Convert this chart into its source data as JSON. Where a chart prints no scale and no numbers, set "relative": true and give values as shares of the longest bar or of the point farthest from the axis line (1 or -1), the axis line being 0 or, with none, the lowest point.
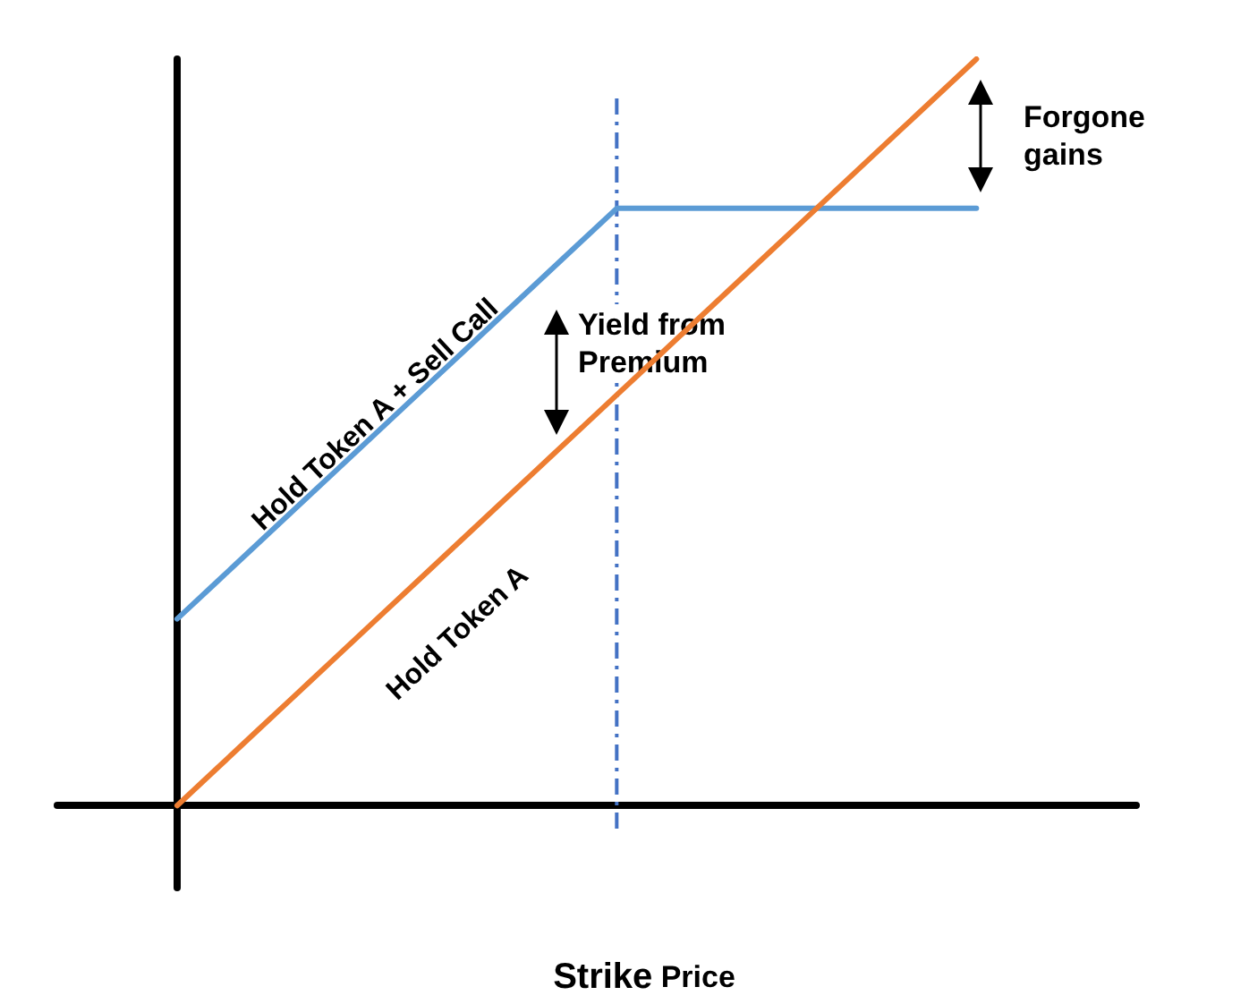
{
  "chart_data": {
    "type": "line",
    "relative": true,
    "xlabel": "Strike Price",
    "grid": false,
    "marker": "none",
    "categories": [
      null,
      null,
      null,
      null,
      null,
      null,
      null,
      null,
      null,
      null,
      null,
      null,
      null,
      null,
      null,
      null,
      null,
      null,
      null,
      null,
      null,
      null,
      null,
      null,
      null,
      null,
      null,
      null
    ],
    "series": [
      {
        "name": "Hold Token A + Sell Call",
        "color": "#5b9bd5",
        "values": [
          null,
          null,
          null,
          0.25,
          0.3,
          0.35,
          0.4,
          0.45,
          0.5,
          0.55,
          0.6,
          0.65,
          0.7,
          0.75,
          0.8,
          0.8,
          0.8,
          0.8,
          0.8,
          0.8,
          0.8,
          0.8,
          0.8,
          0.8,
          null,
          null,
          null,
          null
        ]
      },
      {
        "name": "Hold Token A",
        "color": "#ed7d31",
        "values": [
          null,
          null,
          null,
          0,
          0.05,
          0.1,
          0.15,
          0.2,
          0.25,
          0.3,
          0.35,
          0.4,
          0.45,
          0.5,
          0.55,
          0.6,
          0.65,
          0.7,
          0.75,
          0.8,
          0.85,
          0.9,
          0.95,
          1,
          null,
          null,
          null,
          null
        ]
      }
    ],
    "annotations": [
      "Yield from Premium",
      "Forgone gains"
    ]
  }
}
